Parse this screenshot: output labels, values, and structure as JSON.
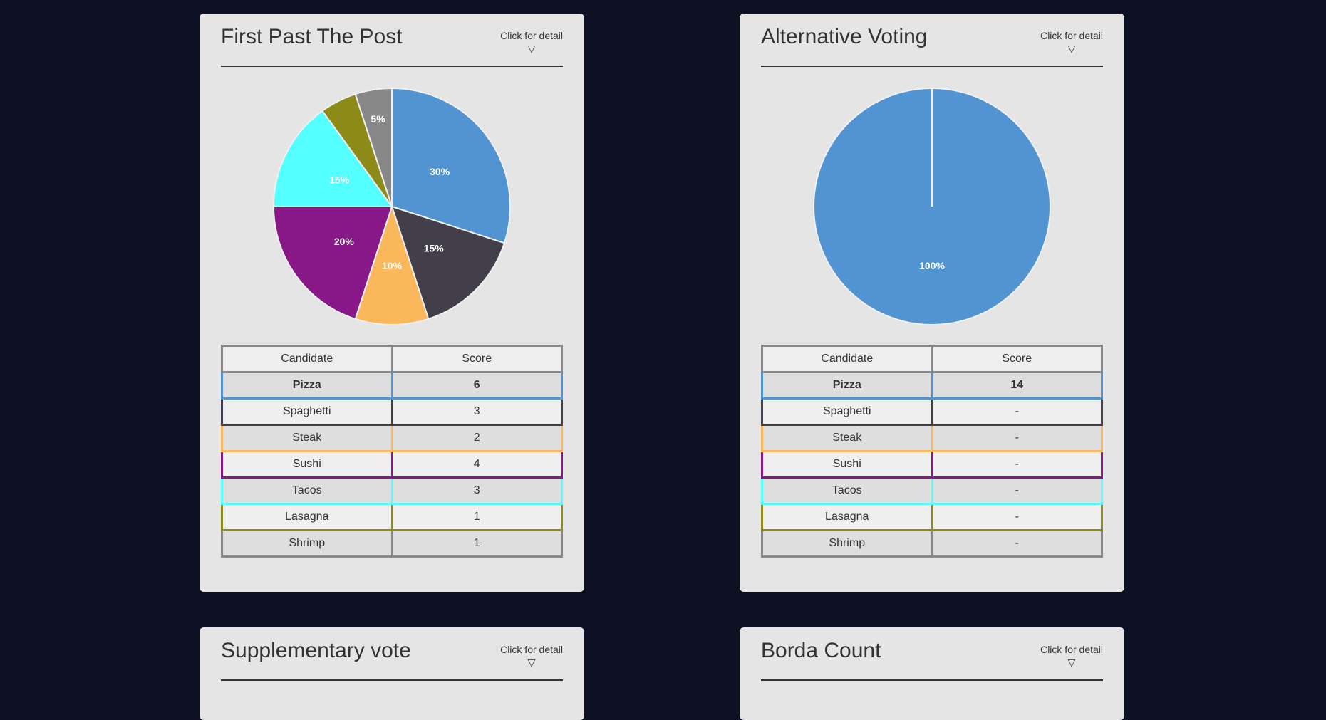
{
  "detail_label": "Click for detail",
  "detail_arrow": "▽",
  "table_headers": {
    "candidate": "Candidate",
    "score": "Score"
  },
  "candidates": [
    {
      "name": "Pizza",
      "color": "#5294d2"
    },
    {
      "name": "Spaghetti",
      "color": "#423e4a"
    },
    {
      "name": "Steak",
      "color": "#fbb75c"
    },
    {
      "name": "Sushi",
      "color": "#881788"
    },
    {
      "name": "Tacos",
      "color": "#55ffff"
    },
    {
      "name": "Lasagna",
      "color": "#8c8a18"
    },
    {
      "name": "Shrimp",
      "color": "#888888"
    }
  ],
  "cards": [
    {
      "title": "First Past The Post",
      "scores": [
        "6",
        "3",
        "2",
        "4",
        "3",
        "1",
        "1"
      ],
      "winner_index": 0
    },
    {
      "title": "Alternative Voting",
      "scores": [
        "14",
        "-",
        "-",
        "-",
        "-",
        "-",
        "-"
      ],
      "winner_index": 0
    },
    {
      "title": "Supplementary vote"
    },
    {
      "title": "Borda Count"
    }
  ],
  "chart_data": [
    {
      "type": "pie",
      "categories": [
        "Pizza",
        "Spaghetti",
        "Steak",
        "Sushi",
        "Tacos",
        "Lasagna",
        "Shrimp"
      ],
      "values": [
        6,
        3,
        2,
        4,
        3,
        1,
        1
      ],
      "labels": [
        "30%",
        "15%",
        "10%",
        "20%",
        "15%",
        "",
        "5%"
      ],
      "colors": [
        "#5294d2",
        "#423e4a",
        "#fbb75c",
        "#881788",
        "#55ffff",
        "#8c8a18",
        "#888888"
      ]
    },
    {
      "type": "pie",
      "categories": [
        "Pizza",
        "Spaghetti",
        "Steak",
        "Sushi",
        "Tacos",
        "Lasagna",
        "Shrimp"
      ],
      "values": [
        14,
        0,
        0,
        0,
        0,
        0,
        0
      ],
      "labels": [
        "100%",
        "",
        "",
        "",
        "",
        "",
        ""
      ],
      "colors": [
        "#5294d2",
        "#423e4a",
        "#fbb75c",
        "#881788",
        "#55ffff",
        "#8c8a18",
        "#888888"
      ]
    }
  ]
}
